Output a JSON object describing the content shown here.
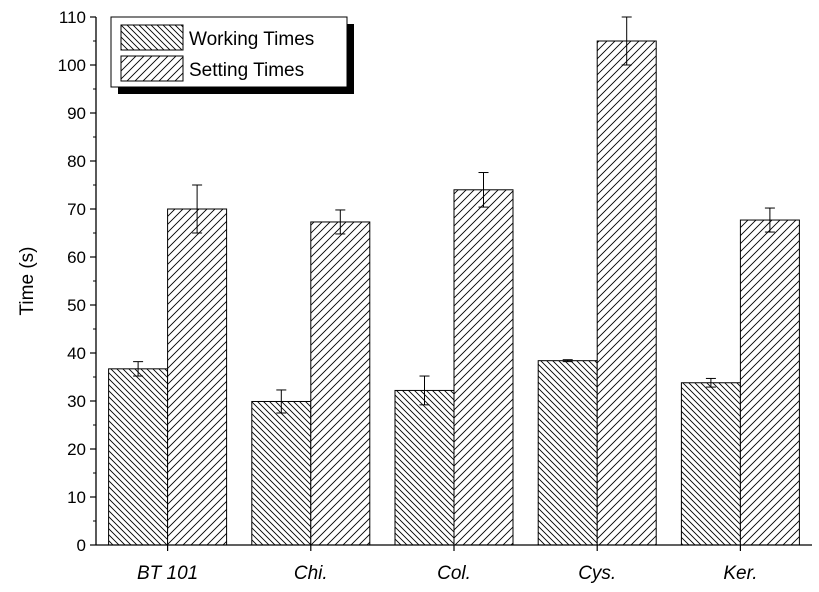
{
  "chart_data": {
    "type": "bar",
    "title": "",
    "xlabel": "",
    "ylabel": "Time (s)",
    "ylim": [
      0,
      110
    ],
    "yticks": [
      0,
      10,
      20,
      30,
      40,
      50,
      60,
      70,
      80,
      90,
      100,
      110
    ],
    "grid": false,
    "legend_position": "top-left",
    "categories": [
      "BT 101",
      "Chi.",
      "Col.",
      "Cys.",
      "Ker."
    ],
    "series": [
      {
        "name": "Working Times",
        "pattern": "back-diagonal-hatch",
        "values": [
          36.7,
          29.9,
          32.2,
          38.4,
          33.8
        ],
        "errors": [
          1.5,
          2.4,
          3.0,
          0.2,
          0.9
        ]
      },
      {
        "name": "Setting Times",
        "pattern": "forward-diagonal-hatch",
        "values": [
          70.0,
          67.3,
          74.0,
          105.0,
          67.7
        ],
        "errors": [
          5.0,
          2.5,
          3.6,
          5.0,
          2.5
        ]
      }
    ]
  }
}
